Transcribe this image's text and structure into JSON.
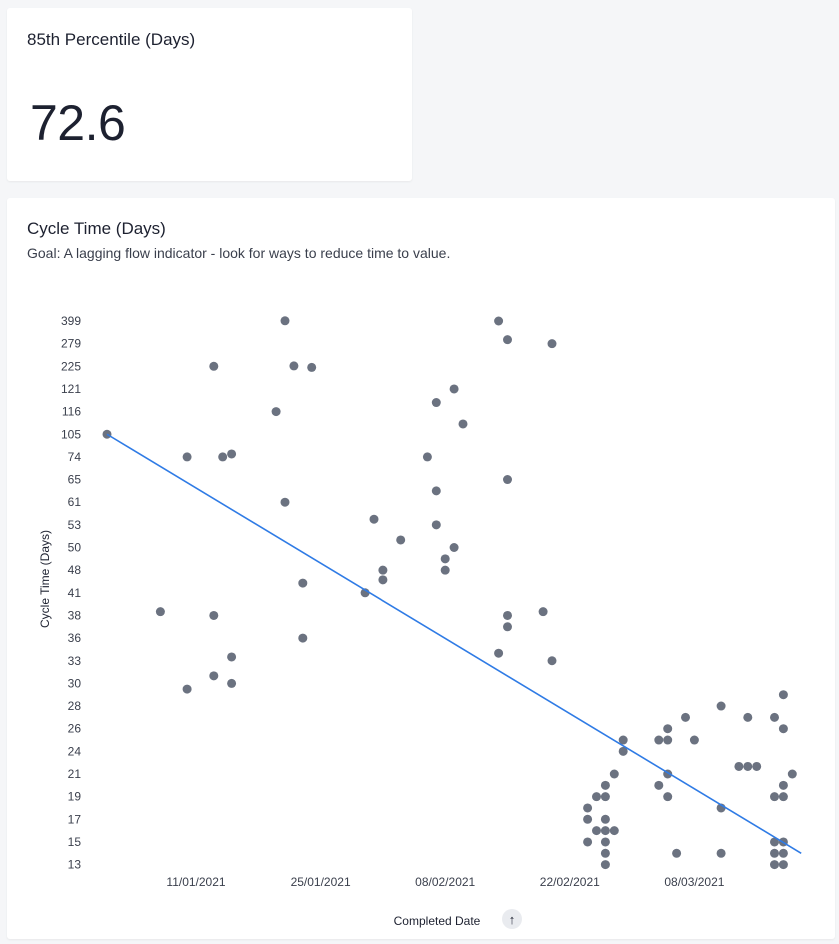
{
  "kpi": {
    "title": "85th Percentile (Days)",
    "value": "72.6"
  },
  "chart": {
    "title": "Cycle Time (Days)",
    "subtitle": "Goal: A lagging flow indicator - look for ways to reduce time to value.",
    "sort_icon": "arrow-up-icon"
  },
  "chart_data": {
    "type": "scatter",
    "xlabel": "Completed Date",
    "ylabel": "Cycle Time (Days)",
    "x_ticks": [
      "11/01/2021",
      "25/01/2021",
      "08/02/2021",
      "22/02/2021",
      "08/03/2021"
    ],
    "x_tick_days": [
      11,
      25,
      39,
      53,
      67
    ],
    "x_range_days": [
      1,
      79
    ],
    "y_ticks": [
      "399",
      "279",
      "225",
      "121",
      "116",
      "105",
      "74",
      "65",
      "61",
      "53",
      "50",
      "48",
      "41",
      "38",
      "36",
      "33",
      "30",
      "28",
      "26",
      "24",
      "21",
      "19",
      "17",
      "15",
      "13"
    ],
    "y_scale": "categorical",
    "grid": false,
    "point_color": "#6b7280",
    "trend_color": "#2f7be5",
    "trend": {
      "from": [
        1,
        105
      ],
      "to": [
        79,
        "between 17 and 15"
      ]
    },
    "points": [
      [
        1,
        "105"
      ],
      [
        7,
        "38.5"
      ],
      [
        10,
        "74"
      ],
      [
        10,
        "29.5"
      ],
      [
        13,
        "225"
      ],
      [
        13,
        "38"
      ],
      [
        13,
        "31"
      ],
      [
        14,
        "74"
      ],
      [
        15,
        "78"
      ],
      [
        15,
        "33.5"
      ],
      [
        15,
        "30"
      ],
      [
        20,
        "116"
      ],
      [
        21,
        "400"
      ],
      [
        21,
        "61"
      ],
      [
        22,
        "226"
      ],
      [
        23,
        "44"
      ],
      [
        23,
        "36"
      ],
      [
        24,
        "220"
      ],
      [
        30,
        "41"
      ],
      [
        31,
        "55"
      ],
      [
        32,
        "48"
      ],
      [
        32,
        "45"
      ],
      [
        34,
        "51"
      ],
      [
        37,
        "74"
      ],
      [
        38,
        "118"
      ],
      [
        38,
        "63"
      ],
      [
        38,
        "53"
      ],
      [
        39,
        "49"
      ],
      [
        39,
        "48"
      ],
      [
        40,
        "121"
      ],
      [
        40,
        "50"
      ],
      [
        41,
        "110"
      ],
      [
        45,
        "399"
      ],
      [
        45,
        "34"
      ],
      [
        46,
        "300"
      ],
      [
        46,
        "65"
      ],
      [
        46,
        "38"
      ],
      [
        46,
        "37"
      ],
      [
        50,
        "38.5"
      ],
      [
        51,
        "279"
      ],
      [
        51,
        "33"
      ],
      [
        55,
        "18"
      ],
      [
        55,
        "17"
      ],
      [
        55,
        "15"
      ],
      [
        56,
        "19"
      ],
      [
        56,
        "16"
      ],
      [
        57,
        "20"
      ],
      [
        57,
        "19"
      ],
      [
        57,
        "17"
      ],
      [
        57,
        "16"
      ],
      [
        57,
        "15"
      ],
      [
        57,
        "14"
      ],
      [
        57,
        "13"
      ],
      [
        58,
        "21"
      ],
      [
        58,
        "16"
      ],
      [
        59,
        "25"
      ],
      [
        59,
        "24"
      ],
      [
        63,
        "25"
      ],
      [
        63,
        "20"
      ],
      [
        64,
        "26"
      ],
      [
        64,
        "25"
      ],
      [
        64,
        "21"
      ],
      [
        64,
        "19"
      ],
      [
        65,
        "14"
      ],
      [
        66,
        "27"
      ],
      [
        67,
        "25"
      ],
      [
        70,
        "28"
      ],
      [
        70,
        "18"
      ],
      [
        70,
        "14"
      ],
      [
        72,
        "22"
      ],
      [
        73,
        "27"
      ],
      [
        73,
        "22"
      ],
      [
        74,
        "22"
      ],
      [
        76,
        "27"
      ],
      [
        76,
        "19"
      ],
      [
        76,
        "15"
      ],
      [
        76,
        "14"
      ],
      [
        76,
        "13"
      ],
      [
        77,
        "29"
      ],
      [
        77,
        "26"
      ],
      [
        77,
        "20"
      ],
      [
        77,
        "19"
      ],
      [
        77,
        "15"
      ],
      [
        77,
        "14"
      ],
      [
        77,
        "13"
      ],
      [
        78,
        "21"
      ]
    ]
  }
}
